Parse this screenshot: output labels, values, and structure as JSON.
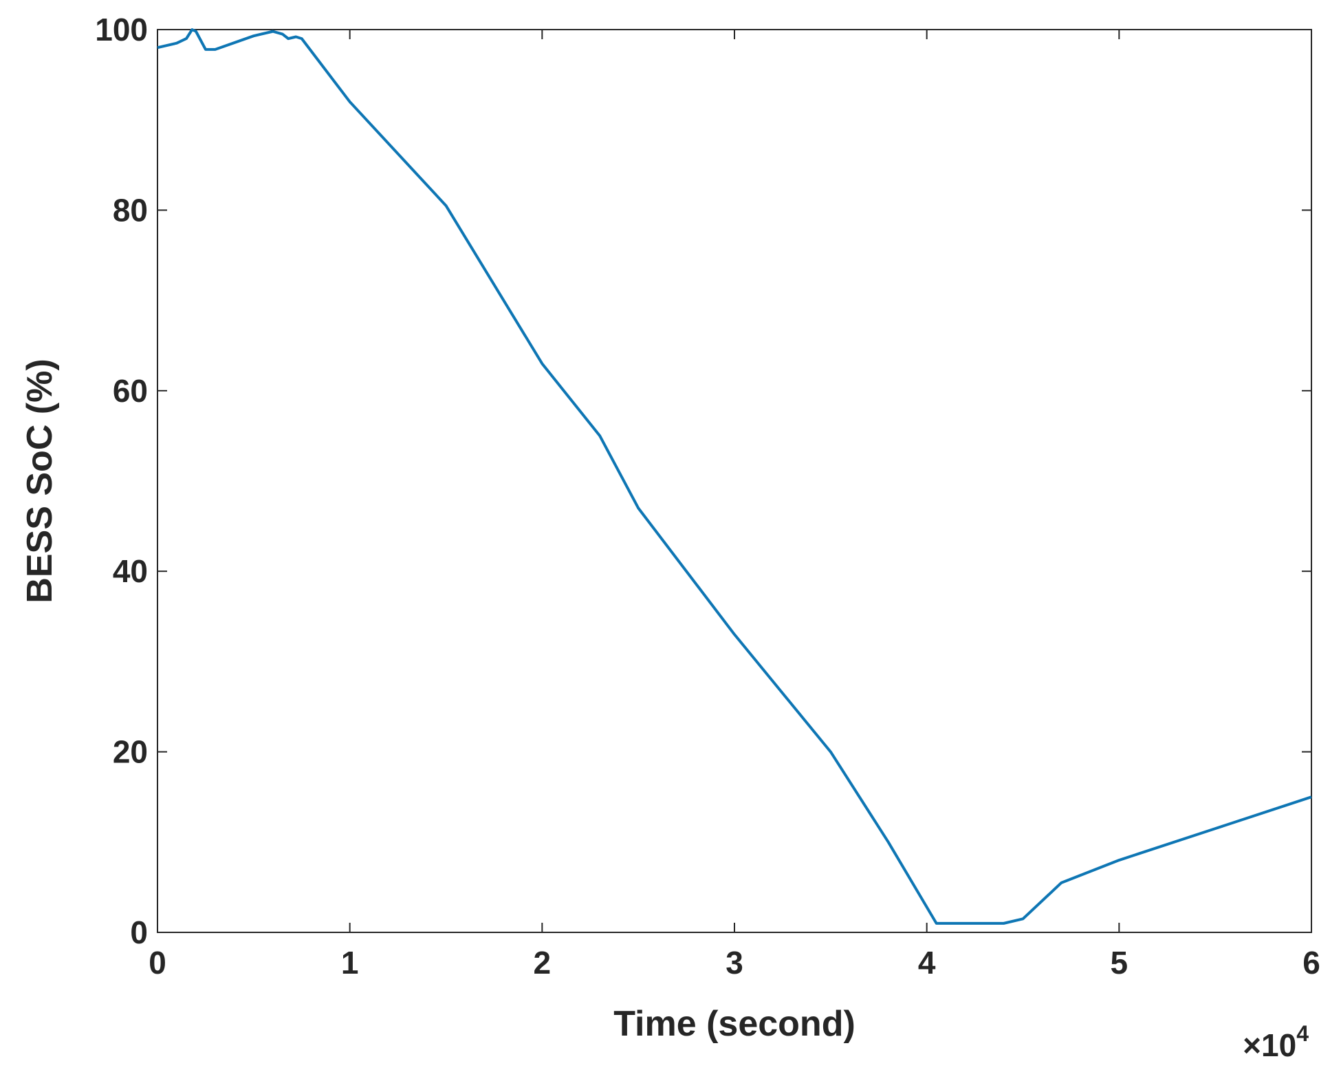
{
  "chart_data": {
    "type": "line",
    "xlabel": "Time (second)",
    "ylabel": "BESS SoC (%)",
    "x_multiplier": {
      "base": "×10",
      "exponent": "4"
    },
    "x": [
      0,
      0.1,
      0.15,
      0.18,
      0.2,
      0.25,
      0.3,
      0.5,
      0.6,
      0.65,
      0.68,
      0.72,
      0.75,
      1.0,
      1.5,
      2.0,
      2.3,
      2.5,
      3.0,
      3.5,
      3.8,
      4.05,
      4.4,
      4.5,
      4.7,
      5.0,
      5.5,
      6.0
    ],
    "series": [
      {
        "color": "#0e76b4",
        "values": [
          98,
          98.5,
          99,
          100,
          99.8,
          97.8,
          97.8,
          99.3,
          99.8,
          99.5,
          99,
          99.2,
          99,
          92,
          80.5,
          63,
          55,
          47,
          33,
          20,
          10,
          1,
          1,
          1.5,
          5.5,
          8,
          11.5,
          15
        ]
      }
    ],
    "xlim": [
      0,
      6
    ],
    "xticks": [
      0,
      1,
      2,
      3,
      4,
      5,
      6
    ],
    "ylim": [
      0,
      100
    ],
    "yticks": [
      0,
      20,
      40,
      60,
      80,
      100
    ],
    "grid": false
  }
}
